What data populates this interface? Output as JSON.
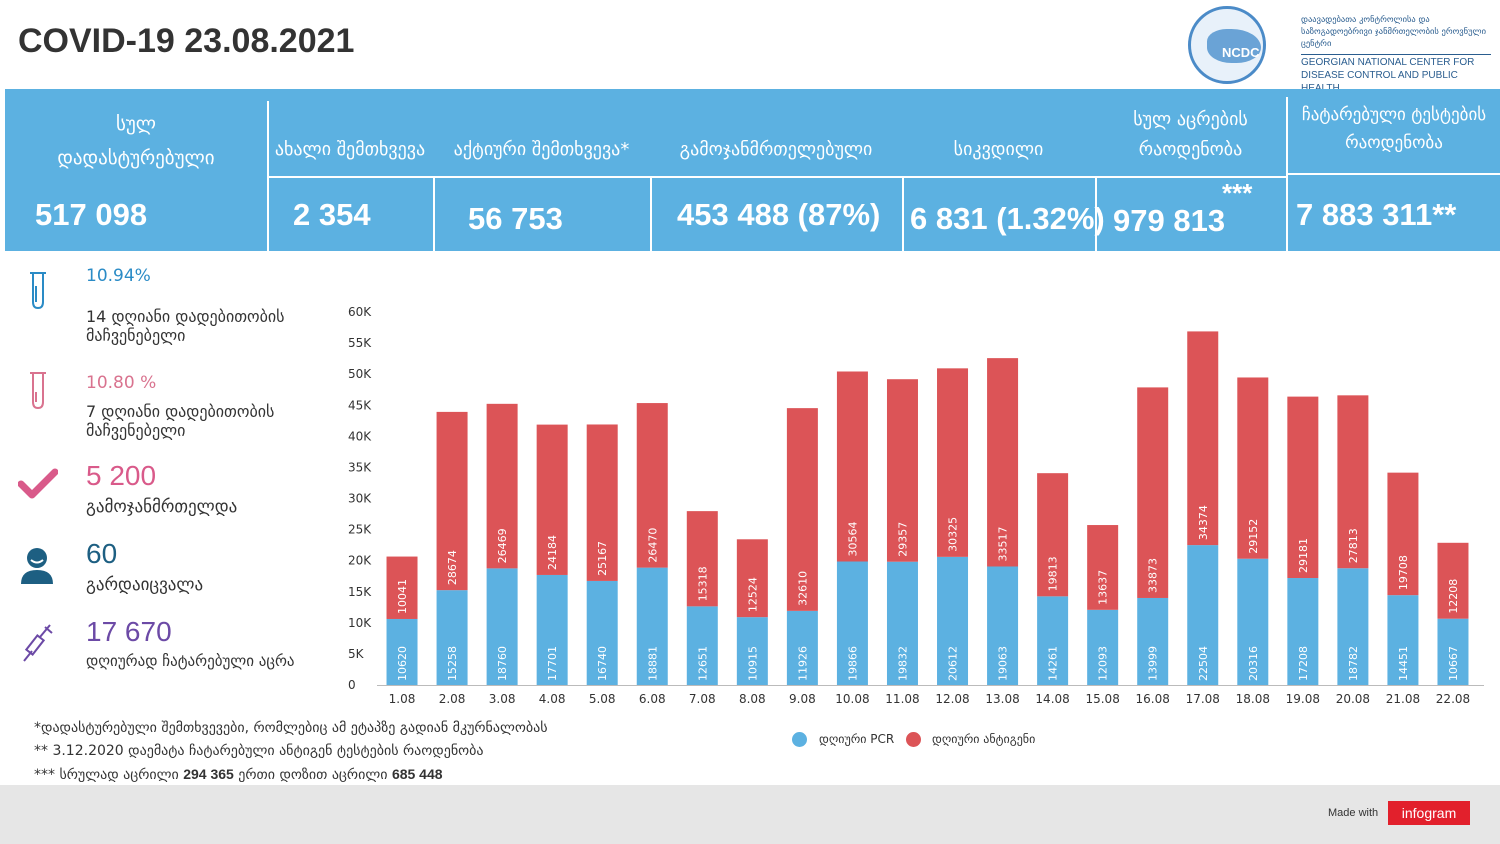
{
  "header": {
    "title": "COVID-19 23.08.2021"
  },
  "logo": {
    "abbr": "NCDC",
    "name_ka": "დაავადებათა კონტროლისა და საზოგადოებრივი ჯანმრთელობის ეროვნული ცენტრი",
    "name_en": "GEORGIAN NATIONAL CENTER FOR DISEASE CONTROL AND PUBLIC HEALTH"
  },
  "stats": {
    "confirmed": {
      "label_1": "სულ",
      "label_2": "დადასტურებული",
      "value": "517 098"
    },
    "new_cases": {
      "label": "ახალი შემთხვევა",
      "value": "2 354"
    },
    "active": {
      "label": "აქტიური შემთხვევა*",
      "value": "56 753"
    },
    "recovered": {
      "label": "გამოჯანმრთელებული",
      "value": "453 488 (87%)"
    },
    "deaths": {
      "label": "სიკვდილი",
      "value": "6 831 (1.32%)"
    },
    "vaccinations": {
      "label_1": "სულ აცრების",
      "label_2": "რაოდენობა",
      "value": "979 813",
      "marker": "***"
    },
    "tests": {
      "label_1": "ჩატარებული ტესტების",
      "label_2": "რაოდენობა",
      "value": "7 883 311**"
    }
  },
  "side": {
    "positivity14": {
      "pct": "10.94%",
      "label_1": "14  დღიანი დადებითობის",
      "label_2": "მაჩვენებელი",
      "icon": "test-tube-icon",
      "color": "#2a8bc6"
    },
    "positivity7": {
      "pct": "10.80 %",
      "label_1": "7 დღიანი დადებითობის",
      "label_2": "მაჩვენებელი",
      "icon": "test-tube-icon",
      "color": "#d9738f"
    },
    "recovered_today": {
      "value": "5 200",
      "label": "გამოჯანმრთელდა",
      "icon": "check-icon",
      "color": "#d95a8a"
    },
    "died_today": {
      "value": "60",
      "label": "გარდაიცვალა",
      "icon": "person-icon",
      "color": "#1d5f82"
    },
    "vaccinated_today": {
      "value": "17 670",
      "label": "დღიურად ჩატარებული აცრა",
      "icon": "syringe-icon",
      "color": "#6c4aa6"
    }
  },
  "notes": {
    "n1": "*დადასტურებული შემთხვევები, რომლებიც ამ ეტაპზე გადიან მკურნალობას",
    "n2": "** 3.12.2020 დაემატა ჩატარებული ანტიგენ ტესტების რაოდენობა",
    "n3_prefix": "***  სრულად აცრილი",
    "n3_full": "294 365",
    "n3_mid": "ერთი დოზით აცრილი",
    "n3_single": "685 448"
  },
  "footer": {
    "made_with": "Made with",
    "brand": "infogram"
  },
  "chart_data": {
    "type": "bar",
    "stacked": true,
    "categories": [
      "1.08",
      "2.08",
      "3.08",
      "4.08",
      "5.08",
      "6.08",
      "7.08",
      "8.08",
      "9.08",
      "10.08",
      "11.08",
      "12.08",
      "13.08",
      "14.08",
      "15.08",
      "16.08",
      "17.08",
      "18.08",
      "19.08",
      "20.08",
      "21.08",
      "22.08"
    ],
    "series": [
      {
        "name": "დღიური PCR",
        "color": "#5cb1e1",
        "values": [
          10620,
          15258,
          18760,
          17701,
          16740,
          18881,
          12651,
          10915,
          11926,
          19866,
          19832,
          20612,
          19063,
          14261,
          12093,
          13999,
          22504,
          20316,
          17208,
          18782,
          14451,
          10667
        ]
      },
      {
        "name": "დღიური ანტიგენი",
        "color": "#dc5457",
        "values": [
          10041,
          28674,
          26469,
          24184,
          25167,
          26470,
          15318,
          12524,
          32610,
          30564,
          29357,
          30325,
          33517,
          19813,
          13637,
          33873,
          34374,
          29152,
          29181,
          27813,
          19708,
          12208
        ]
      }
    ],
    "ylim": [
      0,
      60000
    ],
    "yticks": [
      "0",
      "5K",
      "10K",
      "15K",
      "20K",
      "25K",
      "30K",
      "35K",
      "40K",
      "45K",
      "50K",
      "55K",
      "60K"
    ],
    "grid": false,
    "legend_position": "bottom"
  }
}
